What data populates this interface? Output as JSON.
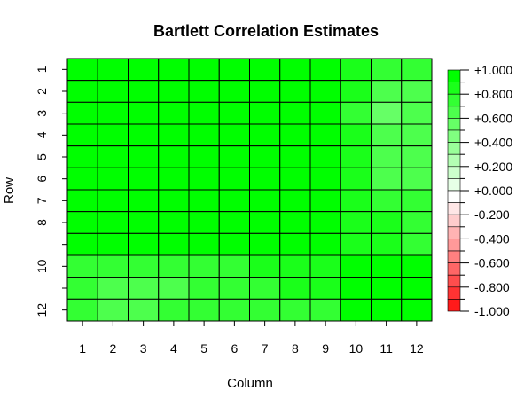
{
  "chart_data": {
    "type": "heatmap",
    "title": "Bartlett Correlation Estimates",
    "xlabel": "Column",
    "ylabel": "Row",
    "x_ticks": [
      "1",
      "2",
      "3",
      "4",
      "5",
      "6",
      "7",
      "8",
      "9",
      "10",
      "11",
      "12"
    ],
    "y_ticks": [
      "1",
      "2",
      "3",
      "4",
      "5",
      "6",
      "7",
      "8",
      "",
      "10",
      "",
      "12"
    ],
    "value_range": [
      -1,
      1
    ],
    "values": [
      [
        1.0,
        0.97,
        0.97,
        0.97,
        0.95,
        0.95,
        0.93,
        0.93,
        0.93,
        0.8,
        0.75,
        0.75
      ],
      [
        0.97,
        1.0,
        0.97,
        0.97,
        0.97,
        0.97,
        0.95,
        0.95,
        0.93,
        0.8,
        0.65,
        0.65
      ],
      [
        0.97,
        0.97,
        1.0,
        0.97,
        0.97,
        0.97,
        0.95,
        0.95,
        0.95,
        0.75,
        0.6,
        0.65
      ],
      [
        0.97,
        0.97,
        0.97,
        1.0,
        0.97,
        0.97,
        0.95,
        0.95,
        0.95,
        0.8,
        0.7,
        0.7
      ],
      [
        0.95,
        0.97,
        0.97,
        0.97,
        1.0,
        0.97,
        0.97,
        0.95,
        0.95,
        0.8,
        0.7,
        0.7
      ],
      [
        0.95,
        0.97,
        0.97,
        0.97,
        0.97,
        1.0,
        0.97,
        0.97,
        0.95,
        0.8,
        0.7,
        0.7
      ],
      [
        0.93,
        0.95,
        0.95,
        0.93,
        0.93,
        0.95,
        1.0,
        0.97,
        0.95,
        0.8,
        0.75,
        0.75
      ],
      [
        0.93,
        0.95,
        0.95,
        0.93,
        0.93,
        0.95,
        0.97,
        1.0,
        0.97,
        0.85,
        0.8,
        0.78
      ],
      [
        0.93,
        0.95,
        0.95,
        0.95,
        0.93,
        0.95,
        0.93,
        0.97,
        1.0,
        0.85,
        0.8,
        0.78
      ],
      [
        0.78,
        0.75,
        0.72,
        0.75,
        0.75,
        0.75,
        0.8,
        0.8,
        0.85,
        1.0,
        0.97,
        0.93
      ],
      [
        0.75,
        0.65,
        0.65,
        0.68,
        0.72,
        0.75,
        0.75,
        0.8,
        0.8,
        0.97,
        1.0,
        0.97
      ],
      [
        0.75,
        0.7,
        0.7,
        0.72,
        0.75,
        0.75,
        0.75,
        0.78,
        0.78,
        0.93,
        0.97,
        1.0
      ]
    ],
    "legend": {
      "labels": [
        "+1.000",
        "+0.800",
        "+0.600",
        "+0.400",
        "+0.200",
        "+0.000",
        "-0.200",
        "-0.400",
        "-0.600",
        "-0.800",
        "-1.000"
      ],
      "colors": [
        "#00FF00",
        "#1AFF1A",
        "#33FF33",
        "#4DFF4D",
        "#66FF66",
        "#80FF80",
        "#99FF99",
        "#B3FFB3",
        "#CCFFCC",
        "#E6FFE6",
        "#FFFFFF",
        "#FFE6E6",
        "#FFCCCC",
        "#FFB3B3",
        "#FF9999",
        "#FF8080",
        "#FF6666",
        "#FF4D4D",
        "#FF3333",
        "#FF1A1A"
      ],
      "placement": "right"
    }
  }
}
